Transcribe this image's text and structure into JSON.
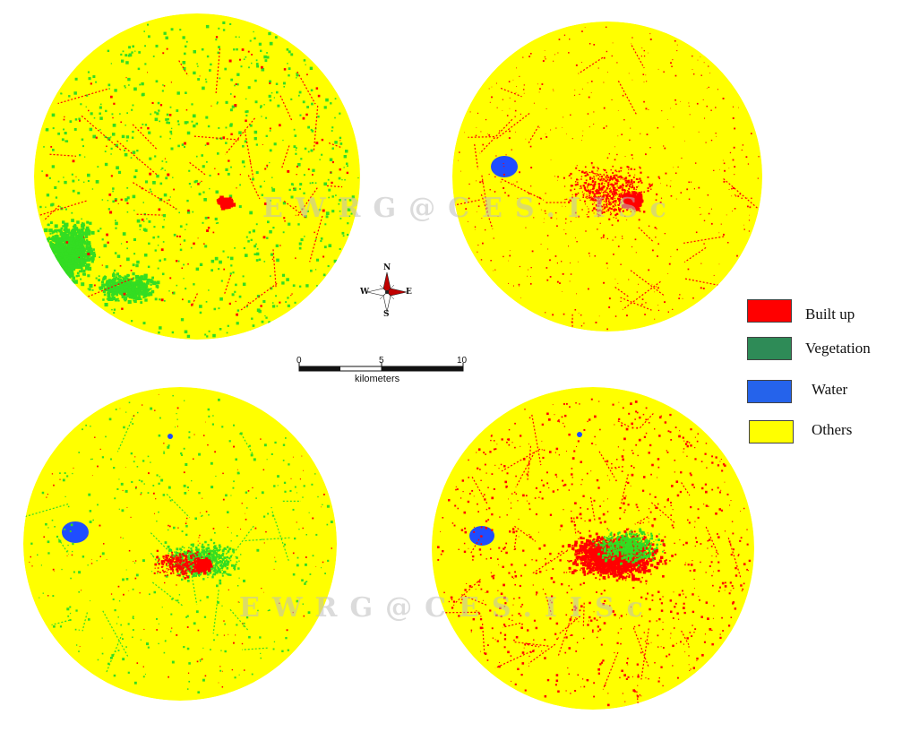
{
  "colors": {
    "built_up": "#ff0000",
    "vegetation": "#2e8b57",
    "vegetation_map": "#33dd22",
    "water": "#1f4dff",
    "others": "#ffff00"
  },
  "legend": {
    "items": [
      {
        "key": "built_up",
        "label": "Built up",
        "color": "#ff0000"
      },
      {
        "key": "vegetation",
        "label": "Vegetation",
        "color": "#2e8b57"
      },
      {
        "key": "water",
        "label": "Water",
        "color": "#2563eb"
      },
      {
        "key": "others",
        "label": "Others",
        "color": "#ffff00"
      }
    ]
  },
  "watermark": {
    "text": "EWRG@CES.IISc"
  },
  "compass": {
    "n": "N",
    "s": "S",
    "e": "E",
    "w": "W"
  },
  "scale_bar": {
    "tick_labels": [
      "0",
      "5",
      "10"
    ],
    "unit": "kilometers"
  },
  "maps": [
    {
      "id": "top-left",
      "built_up_level": "low",
      "vegetation_level": "high",
      "water": "none"
    },
    {
      "id": "top-right",
      "built_up_level": "medium",
      "vegetation_level": "none",
      "water": "lake"
    },
    {
      "id": "bottom-left",
      "built_up_level": "medium",
      "vegetation_level": "medium",
      "water": "lake"
    },
    {
      "id": "bottom-right",
      "built_up_level": "high",
      "vegetation_level": "low",
      "water": "lake"
    }
  ]
}
